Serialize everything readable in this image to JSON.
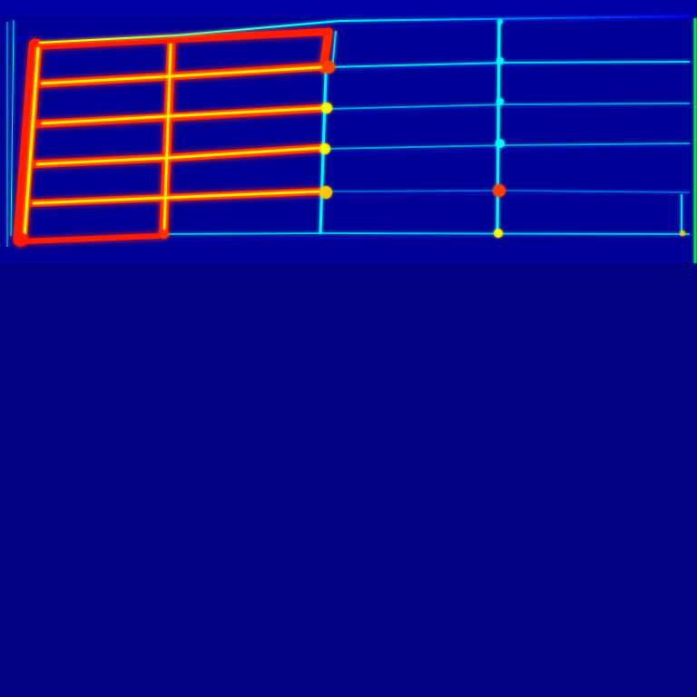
{
  "image": {
    "kind": "activation-heatmap",
    "colormap": "jet",
    "colors": {
      "background": "#000080",
      "low": "#0000ff",
      "mid": "#00ffff",
      "high_mid": "#ffff00",
      "high": "#ff0000"
    }
  }
}
